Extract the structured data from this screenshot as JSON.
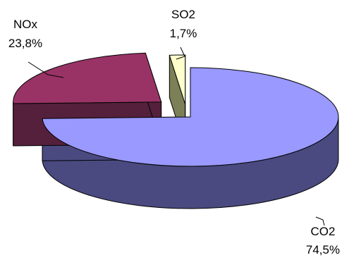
{
  "chart_data": {
    "type": "pie",
    "three_d": true,
    "exploded": true,
    "categories": [
      "CO2",
      "NOx",
      "SO2"
    ],
    "values": [
      74.5,
      23.8,
      1.7
    ],
    "value_labels": [
      "74,5%",
      "23,8%",
      "1,7%"
    ],
    "colors": {
      "CO2": {
        "top": "#9999ff",
        "side": "#4a4a80"
      },
      "NOx": {
        "top": "#993366",
        "side": "#54203b"
      },
      "SO2": {
        "top": "#ffffcc",
        "side": "#7b8057"
      }
    },
    "legend": "none",
    "title": ""
  }
}
